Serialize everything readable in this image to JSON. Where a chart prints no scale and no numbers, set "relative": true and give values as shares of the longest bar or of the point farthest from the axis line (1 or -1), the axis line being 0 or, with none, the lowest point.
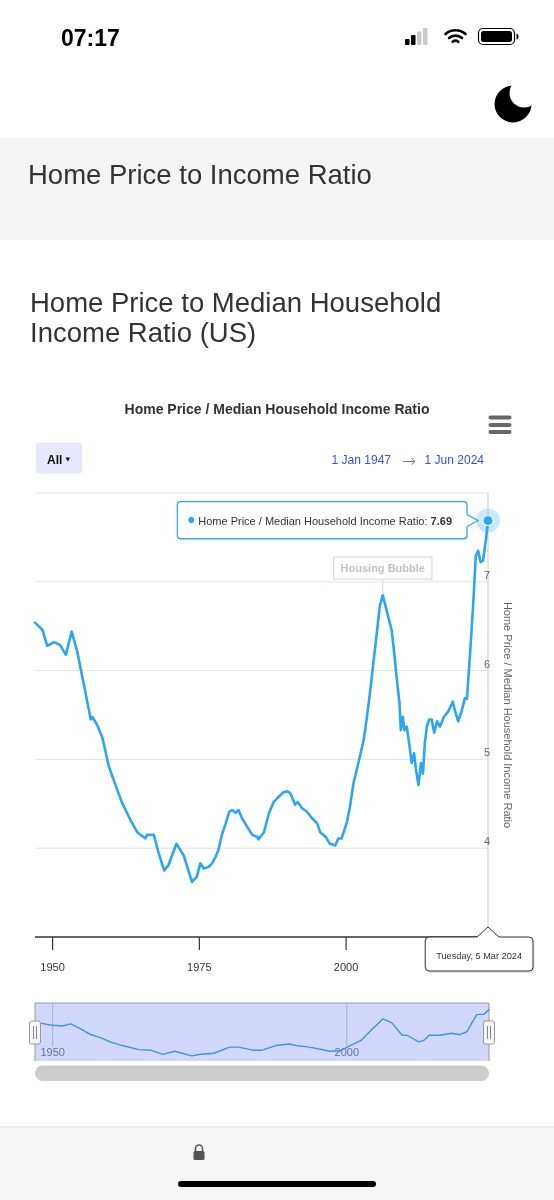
{
  "chart_data": [
    {
      "type": "line",
      "title": "Home Price / Median Household Income Ratio",
      "ylabel": "Home Price / Median Household Income Ratio",
      "x": [
        "1947-01",
        "1948-04",
        "1949-02",
        "1950-04",
        "1951-04",
        "1952-04",
        "1953-04",
        "1954-04",
        "1955-02",
        "1955-09",
        "1956-07",
        "1956-10",
        "1957-08",
        "1958-07",
        "1959-08",
        "1961-01",
        "1961-11",
        "1963-04",
        "1964-06",
        "1965-11",
        "1966-02",
        "1967-04",
        "1968-02",
        "1969-01",
        "1969-10",
        "1971-02",
        "1972-05",
        "1973-10",
        "1974-08",
        "1975-03",
        "1975-10",
        "1976-08",
        "1977-03",
        "1977-10",
        "1978-04",
        "1978-11",
        "1979-07",
        "1980-02",
        "1980-08",
        "1981-03",
        "1981-09",
        "1982-04",
        "1983-03",
        "1984-01",
        "1984-11",
        "1985-02",
        "1986-01",
        "1986-11",
        "1987-09",
        "1988-07",
        "1989-05",
        "1990-01",
        "1990-07",
        "1991-05",
        "1991-10",
        "1992-07",
        "1993-05",
        "1994-03",
        "1995-02",
        "1995-08",
        "1996-07",
        "1997-04",
        "1998-03",
        "1998-09",
        "1999-04",
        "2000-03",
        "2000-09",
        "2001-04",
        "2002-02",
        "2003-01",
        "2003-07",
        "2004-02",
        "2004-08",
        "2005-04",
        "2005-10",
        "2006-04",
        "2006-08",
        "2007-03",
        "2007-10",
        "2008-02",
        "2008-08",
        "2009-02",
        "2009-05",
        "2009-09",
        "2009-12",
        "2010-05",
        "2010-10",
        "2011-03",
        "2011-08",
        "2011-12",
        "2012-05",
        "2012-10",
        "2013-02",
        "2013-06",
        "2013-10",
        "2014-03",
        "2014-08",
        "2015-01",
        "2015-07",
        "2016-01",
        "2016-09",
        "2017-06",
        "2018-03",
        "2018-07",
        "2019-02",
        "2019-09",
        "2020-04",
        "2020-08",
        "2021-02",
        "2021-09",
        "2022-02",
        "2022-07",
        "2022-12",
        "2023-05",
        "2023-11",
        "2024-03-05"
      ],
      "series": [
        {
          "color": "#2da5f1",
          "values": [
            6.54,
            6.46,
            6.28,
            6.32,
            6.29,
            6.18,
            6.44,
            6.2,
            5.92,
            5.73,
            5.45,
            5.48,
            5.39,
            5.24,
            4.92,
            4.66,
            4.51,
            4.32,
            4.18,
            4.11,
            4.15,
            4.15,
            3.94,
            3.75,
            3.81,
            4.05,
            3.92,
            3.62,
            3.68,
            3.83,
            3.77,
            3.79,
            3.83,
            3.9,
            3.98,
            4.15,
            4.28,
            4.41,
            4.43,
            4.4,
            4.43,
            4.34,
            4.24,
            4.15,
            4.13,
            4.1,
            4.18,
            4.39,
            4.52,
            4.58,
            4.63,
            4.64,
            4.62,
            4.49,
            4.52,
            4.45,
            4.41,
            4.34,
            4.28,
            4.18,
            4.13,
            4.05,
            4.03,
            4.11,
            4.11,
            4.3,
            4.47,
            4.73,
            4.96,
            5.22,
            5.45,
            5.76,
            6.05,
            6.43,
            6.73,
            6.85,
            6.76,
            6.61,
            6.46,
            6.27,
            5.94,
            5.64,
            5.33,
            5.48,
            5.33,
            5.37,
            5.18,
            4.96,
            5.07,
            4.88,
            4.71,
            4.96,
            4.84,
            5.18,
            5.37,
            5.45,
            5.45,
            5.3,
            5.43,
            5.37,
            5.48,
            5.54,
            5.65,
            5.56,
            5.43,
            5.54,
            5.69,
            5.68,
            6.16,
            6.76,
            7.29,
            7.35,
            7.22,
            7.24,
            7.48,
            7.69
          ]
        }
      ],
      "xlim": [
        "1947-01-01",
        "2024-03-05"
      ],
      "ylim": [
        3,
        8
      ],
      "xticks": [
        "1950",
        "1975",
        "2000"
      ],
      "yticks": [
        4,
        5,
        6,
        7,
        {
          "value": 8,
          "label": null
        }
      ],
      "grid": "y",
      "annotations": [
        "Home Price to Income Ratio",
        "Home Price to Median Household Income Ratio (US)",
        "All",
        "1 Jan 1947",
        "1 Jun 2024",
        "07:17",
        "Tuesday, 5 Mar 2024",
        "Home Price / Median Household Income Ratio: 7.69",
        {
          "text": "Housing Bubble",
          "x": "2006-04",
          "y": 6.85
        }
      ]
    },
    {
      "type": "line",
      "relative": true,
      "x": [
        "1948-03",
        "1949-08",
        "1951-09",
        "1953-02",
        "1954-11",
        "1956-05",
        "1958-01",
        "1959-10",
        "1961-11",
        "1964-09",
        "1966-09",
        "1968-10",
        "1970-10",
        "1973-09",
        "1975-03",
        "1977-06",
        "1980-02",
        "1981-07",
        "1984-02",
        "1985-08",
        "1987-12",
        "1990-04",
        "1991-06",
        "1993-09",
        "1997-03",
        "1998-12",
        "2000-06",
        "2002-06",
        "2004-03",
        "2006-03",
        "2007-09",
        "2009-06",
        "2010-04",
        "2012-04",
        "2013-02",
        "2014-01",
        "2015-10",
        "2017-11",
        "2019-04",
        "2020-06",
        "2022-02",
        "2023-05",
        "2024-03-05"
      ],
      "values": [
        0.73,
        0.7,
        0.68,
        0.72,
        0.62,
        0.52,
        0.46,
        0.37,
        0.3,
        0.22,
        0.21,
        0.13,
        0.19,
        0.1,
        0.13,
        0.15,
        0.27,
        0.27,
        0.21,
        0.21,
        0.3,
        0.33,
        0.3,
        0.27,
        0.19,
        0.2,
        0.29,
        0.4,
        0.6,
        0.82,
        0.74,
        0.5,
        0.5,
        0.37,
        0.4,
        0.5,
        0.5,
        0.54,
        0.51,
        0.57,
        0.9,
        0.91,
        1
      ],
      "color": "#3d92ea",
      "xlim": [
        "1947-01-01",
        "2024-03-05"
      ],
      "xticks": [
        "1950",
        "2000"
      ],
      "grid": "x"
    }
  ]
}
